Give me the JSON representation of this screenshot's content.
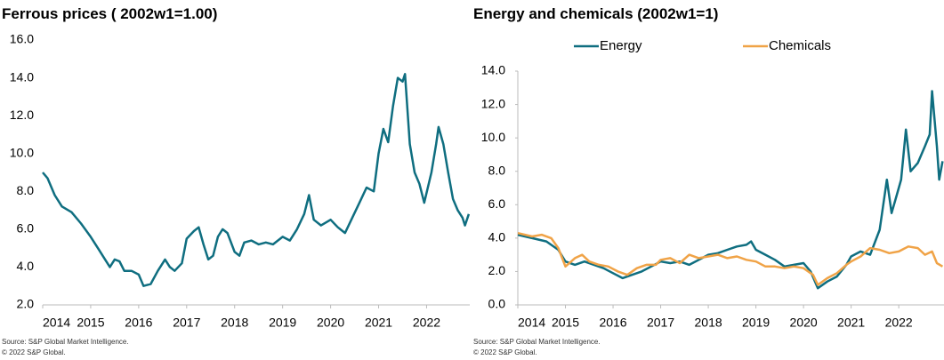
{
  "chart_data": [
    {
      "type": "line",
      "title": "Ferrous prices ( 2002w1=1.00)",
      "xlim": [
        2014,
        2022.9
      ],
      "xticks": [
        2014,
        2015,
        2016,
        2017,
        2018,
        2019,
        2020,
        2021,
        2022
      ],
      "ylim": [
        2,
        16
      ],
      "yticks": [
        {
          "value": 2,
          "label": "2.0"
        },
        {
          "value": 4,
          "label": "4.0"
        },
        {
          "value": 6,
          "label": "6.0"
        },
        {
          "value": 8,
          "label": "8.0"
        },
        {
          "value": 10,
          "label": "10.0"
        },
        {
          "value": 12,
          "label": "12.0"
        },
        {
          "value": 14,
          "label": "14.0"
        },
        {
          "value": 16,
          "label": "16.0"
        }
      ],
      "notes": [
        "Source: S&P Global Market Intelligence.",
        "© 2022 S&P Global."
      ],
      "series": [
        {
          "color": "#0f6e80",
          "x": [
            2014,
            2014.1,
            2014.25,
            2014.4,
            2014.6,
            2014.8,
            2015,
            2015.15,
            2015.3,
            2015.4,
            2015.5,
            2015.6,
            2015.7,
            2015.85,
            2016,
            2016.1,
            2016.25,
            2016.4,
            2016.55,
            2016.65,
            2016.75,
            2016.9,
            2017,
            2017.15,
            2017.25,
            2017.35,
            2017.45,
            2017.55,
            2017.65,
            2017.75,
            2017.85,
            2018,
            2018.1,
            2018.2,
            2018.35,
            2018.5,
            2018.65,
            2018.8,
            2019,
            2019.15,
            2019.3,
            2019.45,
            2019.55,
            2019.65,
            2019.8,
            2020,
            2020.15,
            2020.3,
            2020.45,
            2020.6,
            2020.75,
            2020.9,
            2021,
            2021.1,
            2021.2,
            2021.3,
            2021.4,
            2021.5,
            2021.55,
            2021.65,
            2021.75,
            2021.85,
            2021.95,
            2022.1,
            2022.2,
            2022.25,
            2022.35,
            2022.45,
            2022.55,
            2022.65,
            2022.75,
            2022.8,
            2022.88
          ],
          "values": [
            9.0,
            8.7,
            7.8,
            7.2,
            6.9,
            6.3,
            5.6,
            5.0,
            4.4,
            4.0,
            4.4,
            4.3,
            3.8,
            3.8,
            3.6,
            3.0,
            3.1,
            3.8,
            4.4,
            4.0,
            3.8,
            4.2,
            5.5,
            5.9,
            6.1,
            5.2,
            4.4,
            4.6,
            5.6,
            6.0,
            5.8,
            4.8,
            4.6,
            5.3,
            5.4,
            5.2,
            5.3,
            5.2,
            5.6,
            5.4,
            6.0,
            6.8,
            7.8,
            6.5,
            6.2,
            6.5,
            6.1,
            5.8,
            6.6,
            7.4,
            8.2,
            8.0,
            10.0,
            11.3,
            10.6,
            12.5,
            14.0,
            13.8,
            14.2,
            10.5,
            9.0,
            8.4,
            7.4,
            9.0,
            10.5,
            11.4,
            10.5,
            9.0,
            7.6,
            7.0,
            6.6,
            6.2,
            6.8
          ]
        }
      ]
    },
    {
      "type": "line",
      "title": "Energy and chemicals (2002w1=1)",
      "xlim": [
        2014,
        2022.95
      ],
      "xticks": [
        2014,
        2015,
        2016,
        2017,
        2018,
        2019,
        2020,
        2021,
        2022
      ],
      "ylim": [
        0,
        14
      ],
      "yticks": [
        {
          "value": 0,
          "label": "0.0"
        },
        {
          "value": 2,
          "label": "2.0"
        },
        {
          "value": 4,
          "label": "4.0"
        },
        {
          "value": 6,
          "label": "6.0"
        },
        {
          "value": 8,
          "label": "8.0"
        },
        {
          "value": 10,
          "label": "10.0"
        },
        {
          "value": 12,
          "label": "12.0"
        },
        {
          "value": 14,
          "label": "14.0"
        }
      ],
      "legend": "top",
      "notes": [
        "Source: S&P Global Market Intelligence.",
        "© 2022 S&P Global."
      ],
      "series": [
        {
          "name": "Energy",
          "color": "#0f6e80",
          "x": [
            2014,
            2014.3,
            2014.6,
            2014.85,
            2015,
            2015.2,
            2015.4,
            2015.6,
            2015.8,
            2016,
            2016.2,
            2016.4,
            2016.6,
            2016.8,
            2017,
            2017.2,
            2017.4,
            2017.6,
            2017.8,
            2018,
            2018.2,
            2018.4,
            2018.6,
            2018.8,
            2018.9,
            2019,
            2019.2,
            2019.4,
            2019.6,
            2019.8,
            2020,
            2020.15,
            2020.3,
            2020.5,
            2020.7,
            2020.9,
            2021,
            2021.2,
            2021.4,
            2021.6,
            2021.75,
            2021.85,
            2021.95,
            2022.05,
            2022.15,
            2022.25,
            2022.4,
            2022.55,
            2022.65,
            2022.7,
            2022.8,
            2022.85,
            2022.92
          ],
          "values": [
            4.2,
            4.0,
            3.8,
            3.3,
            2.6,
            2.4,
            2.6,
            2.4,
            2.2,
            1.9,
            1.6,
            1.8,
            2.0,
            2.3,
            2.6,
            2.5,
            2.6,
            2.4,
            2.7,
            3.0,
            3.1,
            3.3,
            3.5,
            3.6,
            3.8,
            3.3,
            3.0,
            2.7,
            2.3,
            2.4,
            2.5,
            2.0,
            1.0,
            1.4,
            1.7,
            2.4,
            2.9,
            3.2,
            3.0,
            4.5,
            7.5,
            5.5,
            6.5,
            7.5,
            10.5,
            8.0,
            8.5,
            9.5,
            10.2,
            12.8,
            9.5,
            7.5,
            8.6
          ]
        },
        {
          "name": "Chemicals",
          "color": "#f0a347",
          "x": [
            2014,
            2014.3,
            2014.5,
            2014.7,
            2014.85,
            2015,
            2015.2,
            2015.35,
            2015.5,
            2015.7,
            2015.9,
            2016.1,
            2016.3,
            2016.5,
            2016.7,
            2016.9,
            2017,
            2017.2,
            2017.4,
            2017.6,
            2017.8,
            2018,
            2018.2,
            2018.4,
            2018.6,
            2018.8,
            2019,
            2019.2,
            2019.4,
            2019.6,
            2019.8,
            2020,
            2020.2,
            2020.3,
            2020.5,
            2020.7,
            2020.9,
            2021,
            2021.2,
            2021.4,
            2021.6,
            2021.8,
            2022,
            2022.2,
            2022.4,
            2022.55,
            2022.7,
            2022.8,
            2022.92
          ],
          "values": [
            4.3,
            4.1,
            4.2,
            4.0,
            3.4,
            2.3,
            2.8,
            3.0,
            2.6,
            2.4,
            2.3,
            2.0,
            1.8,
            2.2,
            2.4,
            2.4,
            2.7,
            2.8,
            2.5,
            3.0,
            2.8,
            2.9,
            3.0,
            2.8,
            2.9,
            2.7,
            2.6,
            2.3,
            2.3,
            2.2,
            2.3,
            2.2,
            1.8,
            1.2,
            1.6,
            1.9,
            2.4,
            2.6,
            2.9,
            3.4,
            3.3,
            3.1,
            3.2,
            3.5,
            3.4,
            3.0,
            3.2,
            2.5,
            2.3
          ]
        }
      ]
    }
  ]
}
